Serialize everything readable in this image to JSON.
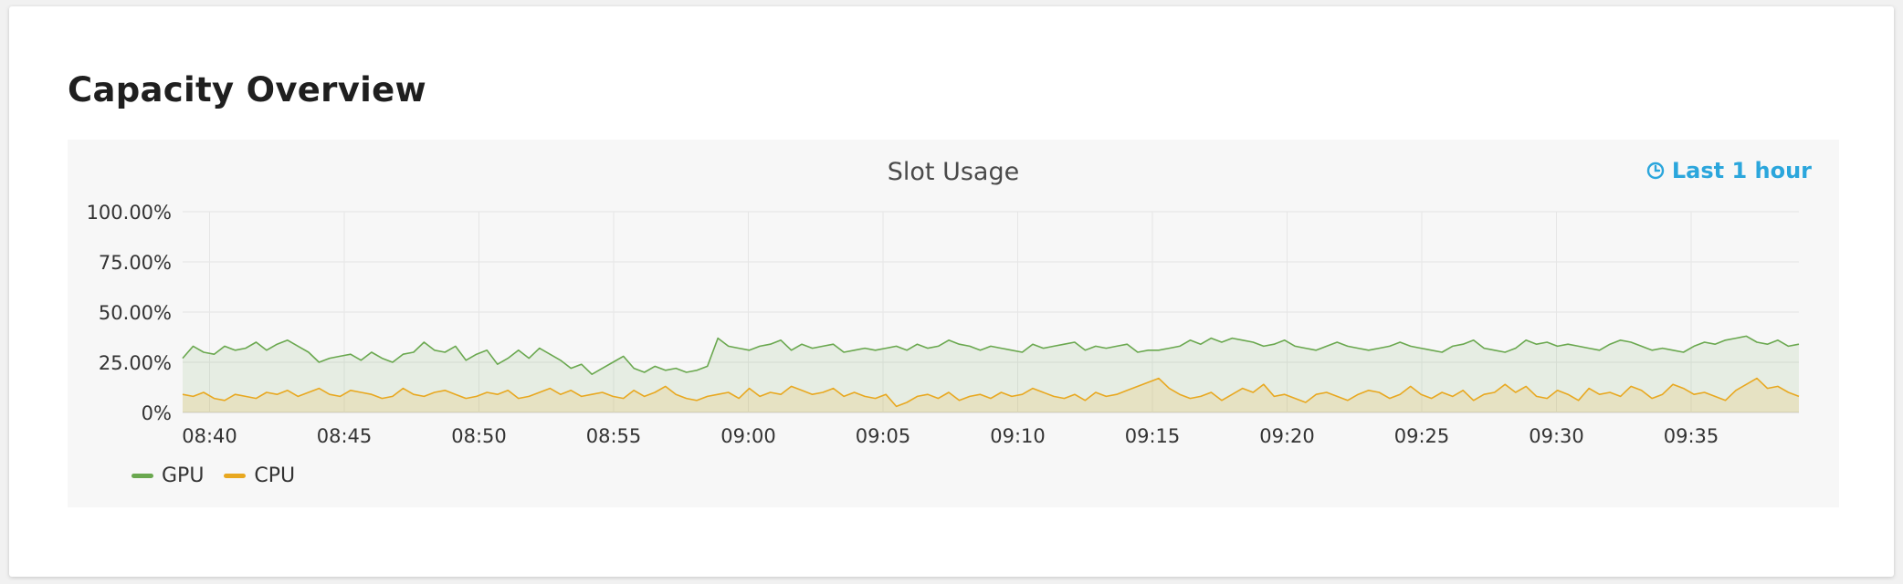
{
  "page": {
    "title": "Capacity Overview"
  },
  "panel": {
    "range_label": "Last 1 hour",
    "range_icon": "clock-icon"
  },
  "colors": {
    "gpu": "#6aa84f",
    "cpu": "#e8a820",
    "link": "#2ba6dc"
  },
  "chart_data": {
    "type": "area",
    "title": "Slot Usage",
    "xlabel": "",
    "ylabel": "",
    "ylim": [
      0,
      100
    ],
    "y_ticks": [
      "0%",
      "25.00%",
      "50.00%",
      "75.00%",
      "100.00%"
    ],
    "x_ticks": [
      "08:40",
      "08:45",
      "08:50",
      "08:55",
      "09:00",
      "09:05",
      "09:10",
      "09:15",
      "09:20",
      "09:25",
      "09:30",
      "09:35"
    ],
    "x_start": "08:39",
    "x_end": "09:39",
    "grid": true,
    "legend_position": "bottom-left",
    "series": [
      {
        "name": "GPU",
        "color": "#6aa84f",
        "values": [
          27,
          33,
          30,
          29,
          33,
          31,
          32,
          35,
          31,
          34,
          36,
          33,
          30,
          25,
          27,
          28,
          29,
          26,
          30,
          27,
          25,
          29,
          30,
          35,
          31,
          30,
          33,
          26,
          29,
          31,
          24,
          27,
          31,
          27,
          32,
          29,
          26,
          22,
          24,
          19,
          22,
          25,
          28,
          22,
          20,
          23,
          21,
          22,
          20,
          21,
          23,
          37,
          33,
          32,
          31,
          33,
          34,
          36,
          31,
          34,
          32,
          33,
          34,
          30,
          31,
          32,
          31,
          32,
          33,
          31,
          34,
          32,
          33,
          36,
          34,
          33,
          31,
          33,
          32,
          31,
          30,
          34,
          32,
          33,
          34,
          35,
          31,
          33,
          32,
          33,
          34,
          30,
          31,
          31,
          32,
          33,
          36,
          34,
          37,
          35,
          37,
          36,
          35,
          33,
          34,
          36,
          33,
          32,
          31,
          33,
          35,
          33,
          32,
          31,
          32,
          33,
          35,
          33,
          32,
          31,
          30,
          33,
          34,
          36,
          32,
          31,
          30,
          32,
          36,
          34,
          35,
          33,
          34,
          33,
          32,
          31,
          34,
          36,
          35,
          33,
          31,
          32,
          31,
          30,
          33,
          35,
          34,
          36,
          37,
          38,
          35,
          34,
          36,
          33,
          34
        ]
      },
      {
        "name": "CPU",
        "color": "#e8a820",
        "values": [
          9,
          8,
          10,
          7,
          6,
          9,
          8,
          7,
          10,
          9,
          11,
          8,
          10,
          12,
          9,
          8,
          11,
          10,
          9,
          7,
          8,
          12,
          9,
          8,
          10,
          11,
          9,
          7,
          8,
          10,
          9,
          11,
          7,
          8,
          10,
          12,
          9,
          11,
          8,
          9,
          10,
          8,
          7,
          11,
          8,
          10,
          13,
          9,
          7,
          6,
          8,
          9,
          10,
          7,
          12,
          8,
          10,
          9,
          13,
          11,
          9,
          10,
          12,
          8,
          10,
          8,
          7,
          9,
          3,
          5,
          8,
          9,
          7,
          10,
          6,
          8,
          9,
          7,
          10,
          8,
          9,
          12,
          10,
          8,
          7,
          9,
          6,
          10,
          8,
          9,
          11,
          13,
          15,
          17,
          12,
          9,
          7,
          8,
          10,
          6,
          9,
          12,
          10,
          14,
          8,
          9,
          7,
          5,
          9,
          10,
          8,
          6,
          9,
          11,
          10,
          7,
          9,
          13,
          9,
          7,
          10,
          8,
          11,
          6,
          9,
          10,
          14,
          10,
          13,
          8,
          7,
          11,
          9,
          6,
          12,
          9,
          10,
          8,
          13,
          11,
          7,
          9,
          14,
          12,
          9,
          10,
          8,
          6,
          11,
          14,
          17,
          12,
          13,
          10,
          8
        ]
      }
    ]
  }
}
